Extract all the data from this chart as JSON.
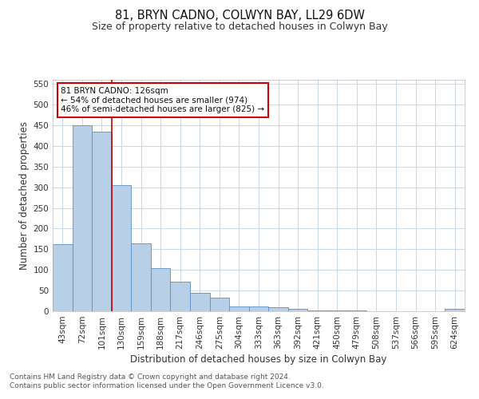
{
  "title": "81, BRYN CADNO, COLWYN BAY, LL29 6DW",
  "subtitle": "Size of property relative to detached houses in Colwyn Bay",
  "xlabel": "Distribution of detached houses by size in Colwyn Bay",
  "ylabel": "Number of detached properties",
  "categories": [
    "43sqm",
    "72sqm",
    "101sqm",
    "130sqm",
    "159sqm",
    "188sqm",
    "217sqm",
    "246sqm",
    "275sqm",
    "304sqm",
    "333sqm",
    "363sqm",
    "392sqm",
    "421sqm",
    "450sqm",
    "479sqm",
    "508sqm",
    "537sqm",
    "566sqm",
    "595sqm",
    "624sqm"
  ],
  "values": [
    163,
    450,
    435,
    305,
    165,
    105,
    72,
    44,
    33,
    12,
    11,
    9,
    5,
    2,
    1,
    1,
    0,
    0,
    0,
    0,
    5
  ],
  "bar_color": "#b8cfe8",
  "bar_edge_color": "#5b8ec4",
  "property_line_x": 2.5,
  "property_line_color": "#cc0000",
  "annotation_text": "81 BRYN CADNO: 126sqm\n← 54% of detached houses are smaller (974)\n46% of semi-detached houses are larger (825) →",
  "annotation_box_color": "#ffffff",
  "annotation_box_edge_color": "#cc0000",
  "ylim": [
    0,
    560
  ],
  "yticks": [
    0,
    50,
    100,
    150,
    200,
    250,
    300,
    350,
    400,
    450,
    500,
    550
  ],
  "footer": "Contains HM Land Registry data © Crown copyright and database right 2024.\nContains public sector information licensed under the Open Government Licence v3.0.",
  "bg_color": "#ffffff",
  "grid_color": "#c8d8ea",
  "title_fontsize": 10.5,
  "subtitle_fontsize": 9,
  "axis_label_fontsize": 8.5,
  "tick_fontsize": 7.5,
  "annotation_fontsize": 7.5,
  "footer_fontsize": 6.5
}
